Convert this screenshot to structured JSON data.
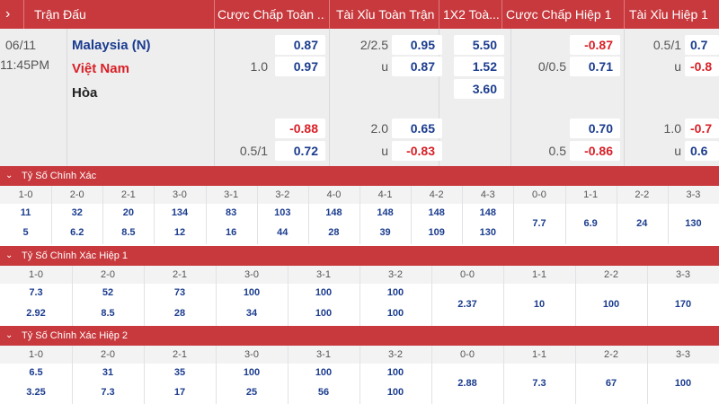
{
  "header": {
    "col_match": "Trận Đấu",
    "col_hdp_ft": "Cược Chấp Toàn ...",
    "col_ou_ft": "Tài Xỉu Toàn Trận",
    "col_1x2_ft": "1X2 Toà...",
    "col_hdp_h1": "Cược Chấp Hiệp 1",
    "col_ou_h1": "Tài Xỉu Hiệp 1"
  },
  "match": {
    "date": "06/11",
    "time": "11:45PM",
    "home": "Malaysia (N)",
    "away": "Việt Nam",
    "draw": "Hòa",
    "hdp_ft": {
      "home1": "0.87",
      "line1": "1.0",
      "away1": "0.97",
      "home2": "-0.88",
      "line2": "0.5/1",
      "away2": "0.72"
    },
    "ou_ft": {
      "line1": "2/2.5",
      "over1": "0.95",
      "u1": "u",
      "under1": "0.87",
      "line2": "2.0",
      "over2": "0.65",
      "u2": "u",
      "under2": "-0.83"
    },
    "x12_ft": {
      "home": "5.50",
      "away": "1.52",
      "draw": "3.60"
    },
    "hdp_h1": {
      "home1": "-0.87",
      "line1": "0/0.5",
      "away1": "0.71",
      "home2": "0.70",
      "line2": "0.5",
      "away2": "-0.86"
    },
    "ou_h1": {
      "line1": "0.5/1",
      "over1": "0.7",
      "u1": "u",
      "under1": "-0.8",
      "line2": "1.0",
      "over2": "-0.7",
      "u2": "u",
      "under2": "0.6"
    }
  },
  "correct_score": {
    "title": "Tỷ Số Chính Xác",
    "cols": [
      {
        "label": "1-0",
        "a": "11",
        "b": "5"
      },
      {
        "label": "2-0",
        "a": "32",
        "b": "6.2"
      },
      {
        "label": "2-1",
        "a": "20",
        "b": "8.5"
      },
      {
        "label": "3-0",
        "a": "134",
        "b": "12"
      },
      {
        "label": "3-1",
        "a": "83",
        "b": "16"
      },
      {
        "label": "3-2",
        "a": "103",
        "b": "44"
      },
      {
        "label": "4-0",
        "a": "148",
        "b": "28"
      },
      {
        "label": "4-1",
        "a": "148",
        "b": "39"
      },
      {
        "label": "4-2",
        "a": "148",
        "b": "109"
      },
      {
        "label": "4-3",
        "a": "148",
        "b": "130"
      },
      {
        "label": "0-0",
        "a": "7.7",
        "b": ""
      },
      {
        "label": "1-1",
        "a": "6.9",
        "b": ""
      },
      {
        "label": "2-2",
        "a": "24",
        "b": ""
      },
      {
        "label": "3-3",
        "a": "130",
        "b": ""
      }
    ]
  },
  "correct_score_h1": {
    "title": "Tỷ Số Chính Xác Hiệp 1",
    "cols": [
      {
        "label": "1-0",
        "a": "7.3",
        "b": "2.92"
      },
      {
        "label": "2-0",
        "a": "52",
        "b": "8.5"
      },
      {
        "label": "2-1",
        "a": "73",
        "b": "28"
      },
      {
        "label": "3-0",
        "a": "100",
        "b": "34"
      },
      {
        "label": "3-1",
        "a": "100",
        "b": "100"
      },
      {
        "label": "3-2",
        "a": "100",
        "b": "100"
      },
      {
        "label": "0-0",
        "a": "2.37",
        "b": ""
      },
      {
        "label": "1-1",
        "a": "10",
        "b": ""
      },
      {
        "label": "2-2",
        "a": "100",
        "b": ""
      },
      {
        "label": "3-3",
        "a": "170",
        "b": ""
      }
    ]
  },
  "correct_score_h2": {
    "title": "Tỷ Số Chính Xác Hiệp 2",
    "cols": [
      {
        "label": "1-0",
        "a": "6.5",
        "b": "3.25"
      },
      {
        "label": "2-0",
        "a": "31",
        "b": "7.3"
      },
      {
        "label": "2-1",
        "a": "35",
        "b": "17"
      },
      {
        "label": "3-0",
        "a": "100",
        "b": "25"
      },
      {
        "label": "3-1",
        "a": "100",
        "b": "56"
      },
      {
        "label": "3-2",
        "a": "100",
        "b": "100"
      },
      {
        "label": "0-0",
        "a": "2.88",
        "b": ""
      },
      {
        "label": "1-1",
        "a": "7.3",
        "b": ""
      },
      {
        "label": "2-2",
        "a": "67",
        "b": ""
      },
      {
        "label": "3-3",
        "a": "100",
        "b": ""
      }
    ]
  },
  "icons": {
    "expand": "chevron-right-icon",
    "collapse": "chevron-down-icon"
  },
  "colors": {
    "header_bg": "#c7393d",
    "odds_blue": "#1b3c8e",
    "odds_red": "#d91f26",
    "row_gray": "#eeeeef"
  }
}
